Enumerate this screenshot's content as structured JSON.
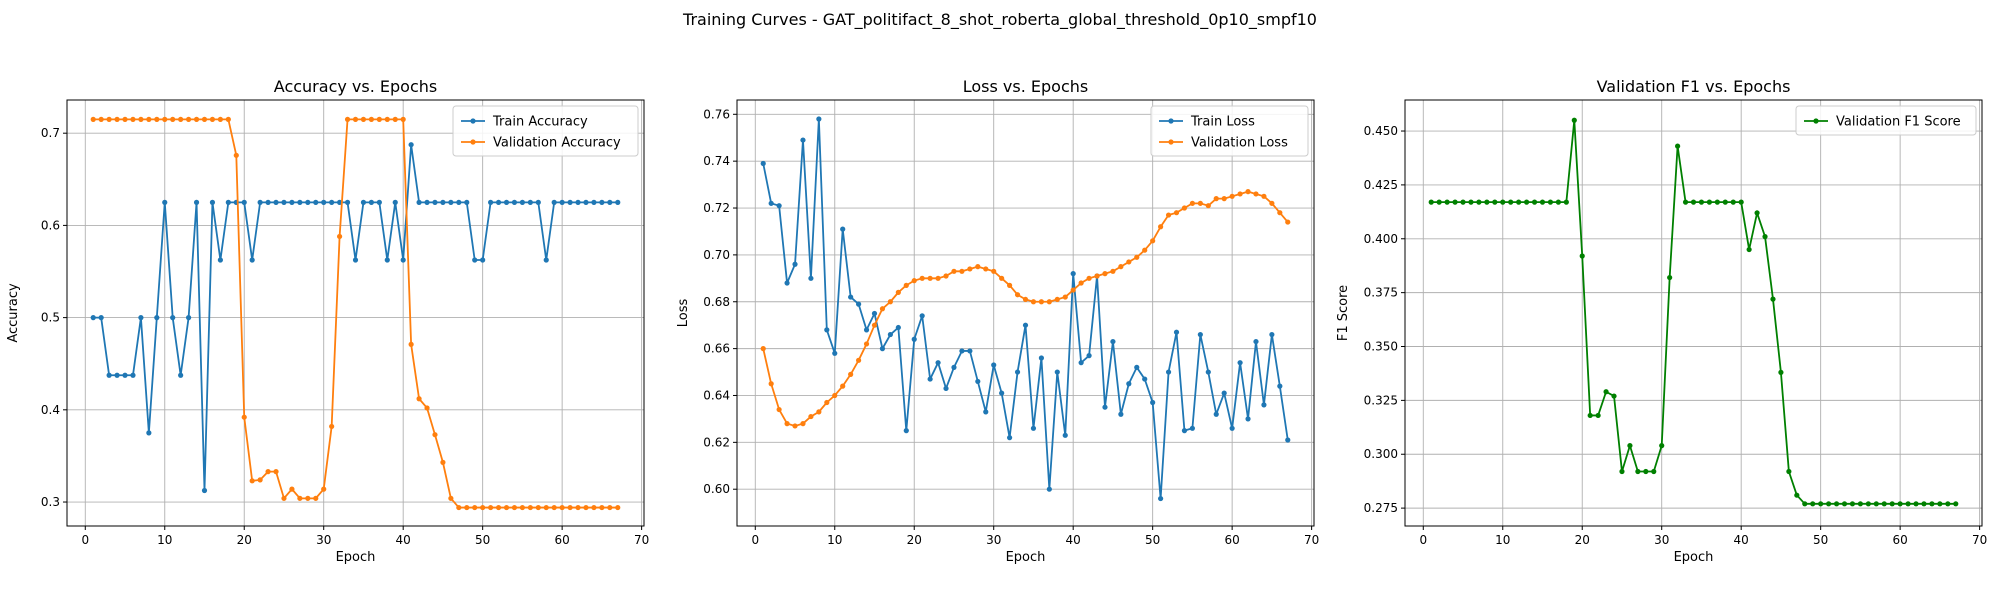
{
  "figure": {
    "suptitle": "Training Curves - GAT_politifact_8_shot_roberta_global_threshold_0p10_smpf10"
  },
  "chart_data": [
    {
      "type": "line",
      "title": "Accuracy vs. Epochs",
      "xlabel": "Epoch",
      "ylabel": "Accuracy",
      "xlim": [
        -2.3,
        70.3
      ],
      "ylim": [
        0.274,
        0.736
      ],
      "xticks": [
        0,
        10,
        20,
        30,
        40,
        50,
        60,
        70
      ],
      "yticks": [
        0.3,
        0.4,
        0.5,
        0.6,
        0.7
      ],
      "ytick_labels": [
        "0.3",
        "0.4",
        "0.5",
        "0.6",
        "0.7"
      ],
      "grid": true,
      "legend_position": "upper right",
      "series": [
        {
          "name": "Train Accuracy",
          "color": "#1f77b4",
          "x_start": 1,
          "values": [
            0.5,
            0.5,
            0.4375,
            0.4375,
            0.4375,
            0.4375,
            0.5,
            0.375,
            0.5,
            0.625,
            0.5,
            0.4375,
            0.5,
            0.625,
            0.3125,
            0.625,
            0.5625,
            0.625,
            0.625,
            0.625,
            0.5625,
            0.625,
            0.625,
            0.625,
            0.625,
            0.625,
            0.625,
            0.625,
            0.625,
            0.625,
            0.625,
            0.625,
            0.625,
            0.5625,
            0.625,
            0.625,
            0.625,
            0.5625,
            0.625,
            0.5625,
            0.6875,
            0.625,
            0.625,
            0.625,
            0.625,
            0.625,
            0.625,
            0.625,
            0.5625,
            0.5625,
            0.625,
            0.625,
            0.625,
            0.625,
            0.625,
            0.625,
            0.625,
            0.5625,
            0.625,
            0.625,
            0.625,
            0.625,
            0.625,
            0.625,
            0.625,
            0.625,
            0.625
          ]
        },
        {
          "name": "Validation Accuracy",
          "color": "#ff7f0e",
          "x_start": 1,
          "values": [
            0.715,
            0.715,
            0.715,
            0.715,
            0.715,
            0.715,
            0.715,
            0.715,
            0.715,
            0.715,
            0.715,
            0.715,
            0.715,
            0.715,
            0.715,
            0.715,
            0.715,
            0.715,
            0.676,
            0.392,
            0.323,
            0.324,
            0.333,
            0.333,
            0.304,
            0.314,
            0.304,
            0.304,
            0.304,
            0.314,
            0.382,
            0.588,
            0.715,
            0.715,
            0.715,
            0.715,
            0.715,
            0.715,
            0.715,
            0.715,
            0.471,
            0.412,
            0.402,
            0.373,
            0.343,
            0.304,
            0.294,
            0.294,
            0.294,
            0.294,
            0.294,
            0.294,
            0.294,
            0.294,
            0.294,
            0.294,
            0.294,
            0.294,
            0.294,
            0.294,
            0.294,
            0.294,
            0.294,
            0.294,
            0.294,
            0.294,
            0.294
          ]
        }
      ]
    },
    {
      "type": "line",
      "title": "Loss vs. Epochs",
      "xlabel": "Epoch",
      "ylabel": "Loss",
      "xlim": [
        -2.3,
        70.3
      ],
      "ylim": [
        0.5843,
        0.7661
      ],
      "xticks": [
        0,
        10,
        20,
        30,
        40,
        50,
        60,
        70
      ],
      "yticks": [
        0.6,
        0.62,
        0.64,
        0.66,
        0.68,
        0.7,
        0.72,
        0.74,
        0.76
      ],
      "ytick_labels": [
        "0.60",
        "0.62",
        "0.64",
        "0.66",
        "0.68",
        "0.70",
        "0.72",
        "0.74",
        "0.76"
      ],
      "grid": true,
      "legend_position": "upper right",
      "series": [
        {
          "name": "Train Loss",
          "color": "#1f77b4",
          "x_start": 1,
          "values": [
            0.739,
            0.722,
            0.721,
            0.688,
            0.696,
            0.749,
            0.69,
            0.758,
            0.668,
            0.658,
            0.711,
            0.682,
            0.679,
            0.668,
            0.675,
            0.66,
            0.666,
            0.669,
            0.625,
            0.664,
            0.674,
            0.647,
            0.654,
            0.643,
            0.652,
            0.659,
            0.659,
            0.646,
            0.633,
            0.653,
            0.641,
            0.622,
            0.65,
            0.67,
            0.626,
            0.656,
            0.6,
            0.65,
            0.623,
            0.692,
            0.654,
            0.657,
            0.691,
            0.635,
            0.663,
            0.632,
            0.645,
            0.652,
            0.647,
            0.637,
            0.596,
            0.65,
            0.667,
            0.625,
            0.626,
            0.666,
            0.65,
            0.632,
            0.641,
            0.626,
            0.654,
            0.63,
            0.663,
            0.636,
            0.666,
            0.644,
            0.621
          ]
        },
        {
          "name": "Validation Loss",
          "color": "#ff7f0e",
          "x_start": 1,
          "values": [
            0.66,
            0.645,
            0.634,
            0.628,
            0.627,
            0.628,
            0.631,
            0.633,
            0.637,
            0.64,
            0.644,
            0.649,
            0.655,
            0.662,
            0.67,
            0.677,
            0.68,
            0.684,
            0.687,
            0.689,
            0.69,
            0.69,
            0.69,
            0.691,
            0.693,
            0.693,
            0.694,
            0.695,
            0.694,
            0.693,
            0.69,
            0.687,
            0.683,
            0.681,
            0.68,
            0.68,
            0.68,
            0.681,
            0.682,
            0.685,
            0.688,
            0.69,
            0.691,
            0.692,
            0.693,
            0.695,
            0.697,
            0.699,
            0.702,
            0.706,
            0.712,
            0.717,
            0.718,
            0.72,
            0.722,
            0.722,
            0.721,
            0.724,
            0.724,
            0.725,
            0.726,
            0.727,
            0.726,
            0.725,
            0.722,
            0.718,
            0.714
          ]
        }
      ]
    },
    {
      "type": "line",
      "title": "Validation F1 vs. Epochs",
      "xlabel": "Epoch",
      "ylabel": "F1 Score",
      "xlim": [
        -2.3,
        70.3
      ],
      "ylim": [
        0.2667,
        0.4644
      ],
      "xticks": [
        0,
        10,
        20,
        30,
        40,
        50,
        60,
        70
      ],
      "yticks": [
        0.275,
        0.3,
        0.325,
        0.35,
        0.375,
        0.4,
        0.425,
        0.45
      ],
      "ytick_labels": [
        "0.275",
        "0.300",
        "0.325",
        "0.350",
        "0.375",
        "0.400",
        "0.425",
        "0.450"
      ],
      "grid": true,
      "legend_position": "upper right",
      "series": [
        {
          "name": "Validation F1 Score",
          "color": "#008000",
          "x_start": 1,
          "values": [
            0.417,
            0.417,
            0.417,
            0.417,
            0.417,
            0.417,
            0.417,
            0.417,
            0.417,
            0.417,
            0.417,
            0.417,
            0.417,
            0.417,
            0.417,
            0.417,
            0.417,
            0.417,
            0.455,
            0.392,
            0.318,
            0.318,
            0.329,
            0.327,
            0.292,
            0.304,
            0.292,
            0.292,
            0.292,
            0.304,
            0.382,
            0.443,
            0.417,
            0.417,
            0.417,
            0.417,
            0.417,
            0.417,
            0.417,
            0.417,
            0.395,
            0.412,
            0.401,
            0.372,
            0.338,
            0.292,
            0.281,
            0.277,
            0.277,
            0.277,
            0.277,
            0.277,
            0.277,
            0.277,
            0.277,
            0.277,
            0.277,
            0.277,
            0.277,
            0.277,
            0.277,
            0.277,
            0.277,
            0.277,
            0.277,
            0.277,
            0.277
          ]
        }
      ]
    }
  ]
}
